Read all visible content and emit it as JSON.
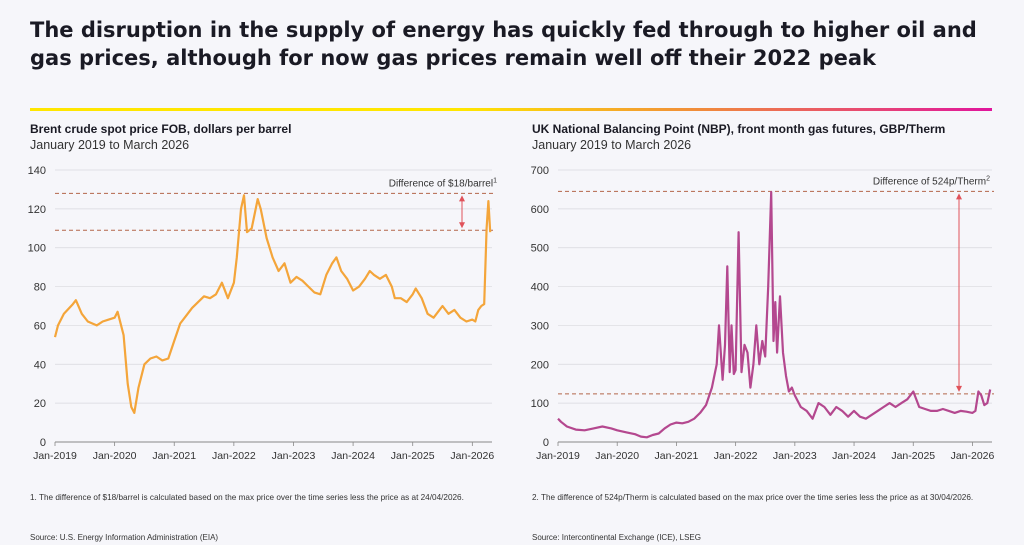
{
  "title": "The disruption in the supply of energy has quickly fed through to higher oil and gas prices, although for now gas prices remain well off their 2022 peak",
  "colors": {
    "oil": "#f4a53a",
    "gas": "#b4488f",
    "ref": "#b4674a",
    "arrow": "#e0525a",
    "grid": "#d8d8de"
  },
  "left": {
    "heading": "Brent crude spot price FOB, dollars per barrel",
    "subheading": "January 2019 to March 2026",
    "footnote": "1.  The difference of $18/barrel is calculated based on the max price over the time series less the price as at 24/04/2026.",
    "source": "Source: U.S. Energy Information Administration (EIA)"
  },
  "right": {
    "heading": "UK National Balancing Point (NBP), front month gas futures, GBP/Therm",
    "subheading": "January 2019 to March 2026",
    "footnote": "2.  The difference of 524p/Therm is calculated based on the max price over the time series less the price as at 30/04/2026.",
    "source": "Source: Intercontinental Exchange (ICE), LSEG"
  },
  "chart_data": [
    {
      "type": "line",
      "series": [
        {
          "values_x": [
            2019.0,
            2019.05,
            2019.15,
            2019.3,
            2019.35,
            2019.45,
            2019.55,
            2019.7,
            2019.8,
            2019.9,
            2020.0,
            2020.05,
            2020.15,
            2020.22,
            2020.28,
            2020.33,
            2020.4,
            2020.5,
            2020.6,
            2020.7,
            2020.8,
            2020.9,
            2021.0,
            2021.1,
            2021.2,
            2021.3,
            2021.4,
            2021.5,
            2021.6,
            2021.7,
            2021.8,
            2021.9,
            2022.0,
            2022.05,
            2022.12,
            2022.17,
            2022.22,
            2022.3,
            2022.4,
            2022.45,
            2022.55,
            2022.65,
            2022.75,
            2022.85,
            2022.95,
            2023.05,
            2023.15,
            2023.25,
            2023.35,
            2023.45,
            2023.55,
            2023.65,
            2023.72,
            2023.8,
            2023.9,
            2024.0,
            2024.1,
            2024.2,
            2024.28,
            2024.35,
            2024.45,
            2024.55,
            2024.65,
            2024.7,
            2024.8,
            2024.9,
            2025.0,
            2025.05,
            2025.15,
            2025.25,
            2025.35,
            2025.45,
            2025.5,
            2025.6,
            2025.7,
            2025.8,
            2025.9,
            2026.0,
            2026.05,
            2026.1,
            2026.15,
            2026.2,
            2026.24,
            2026.27,
            2026.3
          ],
          "values": [
            54,
            60,
            66,
            71,
            73,
            66,
            62,
            60,
            62,
            63,
            64,
            67,
            55,
            30,
            18,
            15,
            28,
            40,
            43,
            44,
            42,
            43,
            52,
            61,
            65,
            69,
            72,
            75,
            74,
            76,
            82,
            74,
            82,
            95,
            120,
            127,
            108,
            110,
            125,
            120,
            105,
            95,
            88,
            92,
            82,
            85,
            83,
            80,
            77,
            76,
            86,
            92,
            95,
            88,
            84,
            78,
            80,
            84,
            88,
            86,
            84,
            86,
            80,
            74,
            74,
            72,
            76,
            79,
            74,
            66,
            64,
            68,
            70,
            66,
            68,
            64,
            62,
            63,
            62,
            68,
            70,
            71,
            110,
            124,
            108
          ]
        }
      ],
      "ylim": [
        0,
        140
      ],
      "yticks": [
        0,
        20,
        40,
        60,
        80,
        100,
        120,
        140
      ],
      "xticks": [
        "Jan-2019",
        "Jan-2020",
        "Jan-2021",
        "Jan-2022",
        "Jan-2023",
        "Jan-2024",
        "Jan-2025",
        "Jan-2026"
      ],
      "reference_lines": [
        128,
        109
      ],
      "annotation": "Difference of $18/barrel",
      "annotation_sup": "1"
    },
    {
      "type": "line",
      "series": [
        {
          "values_x": [
            2019.0,
            2019.05,
            2019.15,
            2019.3,
            2019.45,
            2019.6,
            2019.75,
            2019.9,
            2020.0,
            2020.15,
            2020.3,
            2020.4,
            2020.5,
            2020.6,
            2020.7,
            2020.8,
            2020.9,
            2021.0,
            2021.1,
            2021.2,
            2021.3,
            2021.4,
            2021.5,
            2021.6,
            2021.68,
            2021.72,
            2021.75,
            2021.78,
            2021.82,
            2021.86,
            2021.9,
            2021.93,
            2021.97,
            2022.0,
            2022.05,
            2022.1,
            2022.15,
            2022.2,
            2022.25,
            2022.3,
            2022.35,
            2022.4,
            2022.45,
            2022.5,
            2022.55,
            2022.6,
            2022.64,
            2022.67,
            2022.7,
            2022.75,
            2022.8,
            2022.85,
            2022.9,
            2022.95,
            2023.0,
            2023.1,
            2023.2,
            2023.3,
            2023.4,
            2023.5,
            2023.6,
            2023.7,
            2023.8,
            2023.9,
            2024.0,
            2024.1,
            2024.2,
            2024.3,
            2024.4,
            2024.5,
            2024.6,
            2024.7,
            2024.8,
            2024.9,
            2025.0,
            2025.1,
            2025.2,
            2025.3,
            2025.4,
            2025.5,
            2025.6,
            2025.7,
            2025.8,
            2025.9,
            2026.0,
            2026.05,
            2026.1,
            2026.15,
            2026.2,
            2026.25,
            2026.3
          ],
          "values": [
            60,
            52,
            40,
            32,
            30,
            35,
            40,
            35,
            30,
            25,
            20,
            14,
            12,
            18,
            22,
            35,
            45,
            50,
            48,
            52,
            60,
            75,
            95,
            140,
            200,
            300,
            230,
            160,
            250,
            452,
            180,
            300,
            175,
            185,
            540,
            180,
            250,
            230,
            140,
            200,
            300,
            200,
            260,
            220,
            400,
            643,
            260,
            360,
            230,
            375,
            230,
            170,
            130,
            140,
            120,
            90,
            80,
            60,
            100,
            90,
            70,
            90,
            80,
            65,
            80,
            65,
            60,
            70,
            80,
            90,
            100,
            90,
            100,
            110,
            130,
            90,
            85,
            80,
            80,
            85,
            80,
            75,
            80,
            78,
            75,
            80,
            130,
            120,
            95,
            100,
            135
          ]
        }
      ],
      "ylim": [
        0,
        700
      ],
      "yticks": [
        0,
        100,
        200,
        300,
        400,
        500,
        600,
        700
      ],
      "xticks": [
        "Jan-2019",
        "Jan-2020",
        "Jan-2021",
        "Jan-2022",
        "Jan-2023",
        "Jan-2024",
        "Jan-2025",
        "Jan-2026"
      ],
      "reference_lines": [
        645,
        124
      ],
      "annotation": "Difference of 524p/Therm",
      "annotation_sup": "2"
    }
  ]
}
